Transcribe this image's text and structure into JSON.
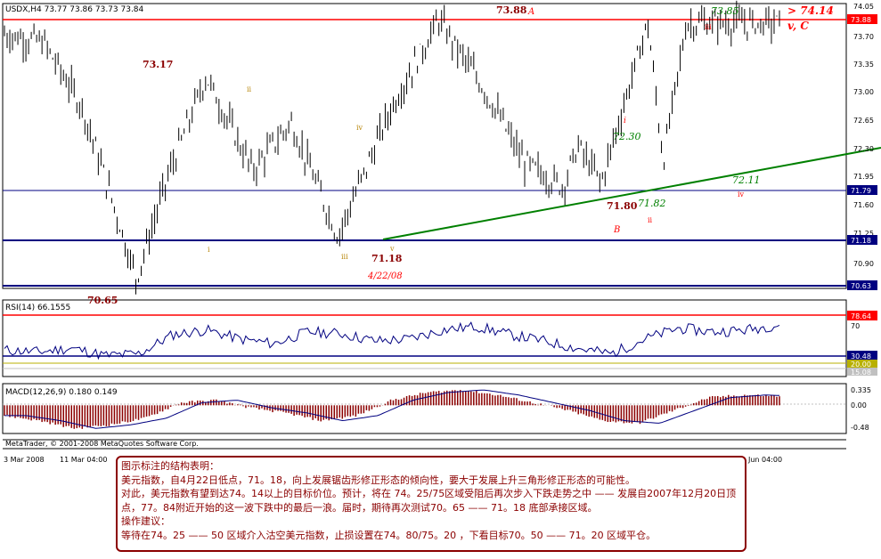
{
  "header": {
    "title": "USDX,H4  73.77 73.86 73.73 73.84",
    "footer": "MetaTrader, © 2001-2008 MetaQuotes Software Corp."
  },
  "rsi": {
    "label": "RSI(14) 66.1555",
    "levels": [
      "78.64",
      "30.48",
      "20.00",
      "15.08"
    ],
    "axis": [
      "70"
    ]
  },
  "macd": {
    "label": "MACD(12,26,9) 0.180 0.149",
    "axis": [
      "0.335",
      "0.00",
      "-0.48"
    ]
  },
  "price_labels": [
    "73.88",
    "71.79",
    "71.18",
    "70.63"
  ],
  "time_axis": [
    "3 Mar 2008",
    "11 Mar 04:00",
    "Jun 04:00"
  ],
  "annotations": {
    "a_high": "73.88",
    "a_letter": "A",
    "target": "> 74.14",
    "vc": "v, C",
    "h7385": "73.85",
    "iii_top": "iii",
    "h7317": "73.17",
    "ii_1": "ii",
    "iv_1": "iv",
    "i_1": "i",
    "iii_1": "iii",
    "v_1": "v",
    "low7118": "71.18",
    "date": "4/22/08",
    "low7065": "70.65",
    "i_2": "i",
    "v7230": "72.30",
    "v7180": "71.80",
    "v7182": "71.82",
    "ii_2": "ii",
    "b_letter": "B",
    "v7211": "72.11",
    "iv_2": "iv"
  },
  "note": {
    "lines": [
      "图示标注的结构表明：",
      "美元指数，自4月22日低点，71。18，向上发展锯齿形修正形态的倾向性，要大于发展上升三角形修正形态的可能性。",
      "对此，美元指数有望到达74。14以上的目标价位。预计，将在 74。25/75区域受阻后再次步入下跌走势之中 —— 发展自2007年12月20日顶",
      "点，77。84附近开始的这一波下跌中的最后一浪。届时，期待再次测试70。65 —— 71。18 底部承接区域。",
      "",
      "操作建议：",
      "等待在74。25 —— 50 区域介入沽空美元指数，止损设置在74。80/75。20 ，下看目标70。50 —— 71。20 区域平仓。"
    ]
  },
  "colors": {
    "bar": "#000000",
    "trend": "#008000",
    "hline_red": "#ff0000",
    "hline_navy": "#000080",
    "label_red_bg": "#ff0000",
    "label_navy_bg": "#000080",
    "annot_dark_red": "#8b0000",
    "annot_green": "#008000",
    "macd_hist": "#8b0000",
    "rsi_line": "#000080"
  },
  "chart_data": [
    {
      "type": "candlestick",
      "title": "USDX,H4",
      "ylabel": "",
      "ylim": [
        70.55,
        74.05
      ],
      "yticks": [
        "74.05",
        "73.70",
        "73.35",
        "73.00",
        "72.65",
        "72.30",
        "71.95",
        "71.60",
        "71.25",
        "70.90"
      ],
      "xticks": [
        "3 Mar 2008",
        "11 Mar 04:00",
        "Jun 04:00"
      ],
      "series": [
        {
          "points": [
            [
              0,
              73.7
            ],
            [
              0.05,
              73.6
            ],
            [
              0.1,
              72.8
            ],
            [
              0.14,
              71.6
            ],
            [
              0.17,
              70.65
            ],
            [
              0.21,
              71.9
            ],
            [
              0.26,
              73.17
            ],
            [
              0.32,
              72.0
            ],
            [
              0.37,
              72.6
            ],
            [
              0.43,
              71.18
            ],
            [
              0.5,
              72.8
            ],
            [
              0.56,
              73.88
            ],
            [
              0.62,
              73.0
            ],
            [
              0.67,
              72.1
            ],
            [
              0.72,
              71.8
            ],
            [
              0.74,
              72.3
            ],
            [
              0.77,
              71.85
            ],
            [
              0.83,
              73.85
            ],
            [
              0.85,
              72.11
            ],
            [
              0.88,
              73.84
            ]
          ]
        }
      ],
      "horizontal_levels": [
        73.88,
        71.79,
        71.18,
        70.63
      ],
      "trendlines": [
        {
          "from": [
            0.43,
            71.18
          ],
          "to": [
            1.0,
            72.3
          ]
        }
      ]
    },
    {
      "type": "line",
      "title": "RSI(14) 66.1555",
      "ylim": [
        10,
        90
      ],
      "levels": [
        78.64,
        70,
        30.48,
        20.0,
        15.08
      ],
      "series": [
        {
          "name": "RSI(14)",
          "values": [
            38,
            36,
            40,
            32,
            34,
            55,
            60,
            50,
            45,
            58,
            56,
            48,
            50,
            60,
            64,
            55,
            48,
            40,
            34,
            50,
            62,
            58,
            60,
            66
          ]
        }
      ]
    },
    {
      "type": "bar",
      "title": "MACD(12,26,9) 0.180 0.149",
      "ylim": [
        -0.48,
        0.335
      ],
      "series": [
        {
          "name": "MACD",
          "values": [
            -0.2,
            -0.3,
            -0.45,
            -0.38,
            -0.25,
            0.05,
            0.1,
            -0.05,
            -0.15,
            -0.3,
            -0.2,
            0.1,
            0.25,
            0.3,
            0.2,
            0.05,
            -0.1,
            -0.3,
            -0.35,
            -0.1,
            0.15,
            0.2,
            0.18
          ]
        }
      ]
    }
  ]
}
